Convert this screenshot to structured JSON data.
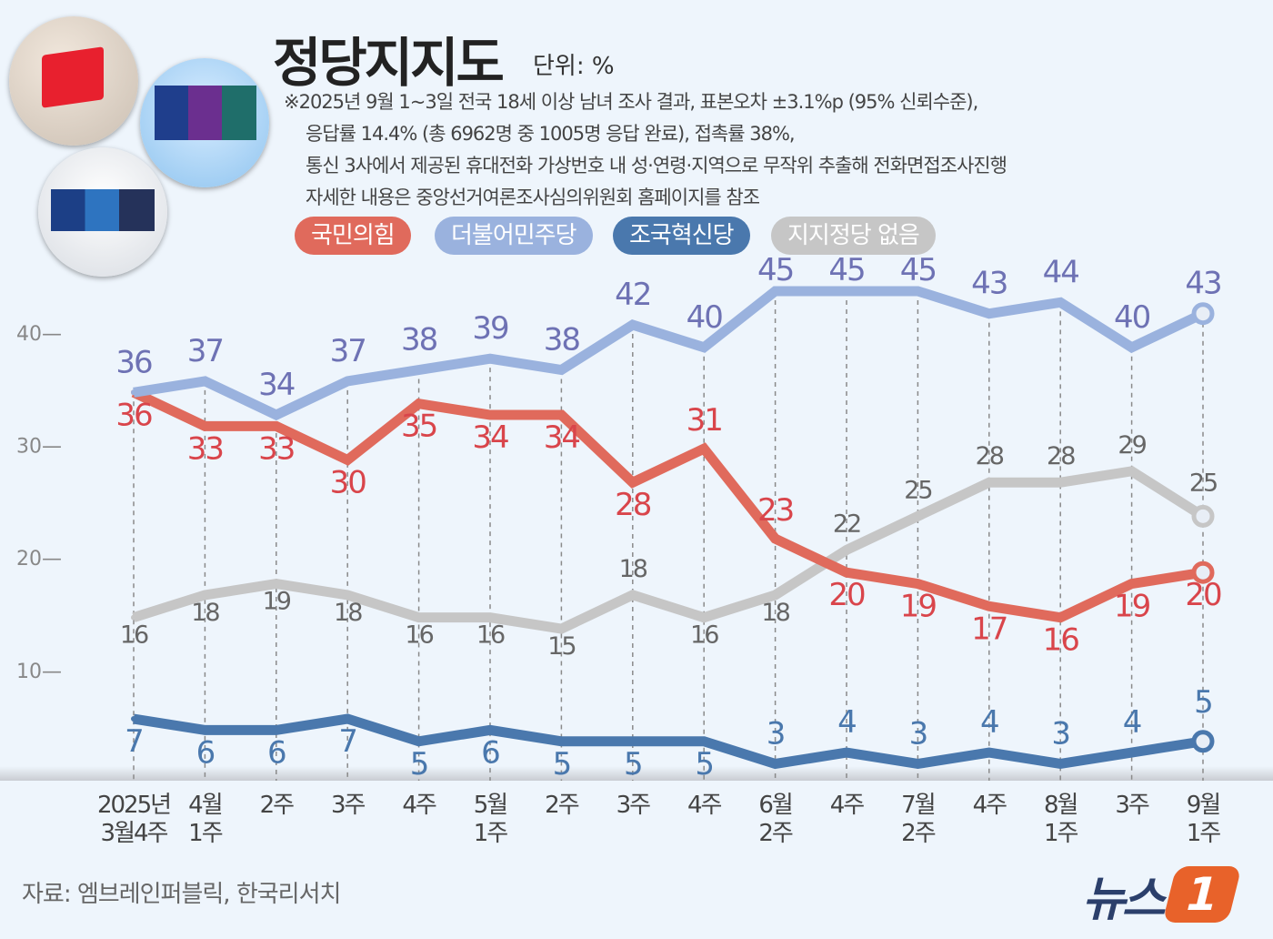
{
  "header": {
    "title": "정당지지도",
    "unit": "단위: %",
    "notes": [
      "※2025년 9월 1~3일 전국 18세 이상 남녀 조사 결과, 표본오차 ±3.1%p (95% 신뢰수준),",
      "응답률 14.4% (총 6962명 중 1005명 응답 완료), 접촉률 38%,",
      "통신 3사에서 제공된 휴대전화 가상번호 내 성·연령·지역으로 무작위 추출해 전화면접조사진행",
      "자세한 내용은 중앙선거여론조사심의위원회 홈페이지를 참조"
    ]
  },
  "footer": {
    "source": "자료: 엠브레인퍼블릭, 한국리서치",
    "logo": "뉴스1"
  },
  "chart_data": {
    "type": "line",
    "title": "정당지지도",
    "ylim": [
      0,
      45
    ],
    "yticks": [
      10,
      20,
      30,
      40
    ],
    "grid": "vertical dashed",
    "legend": "top",
    "categories": [
      [
        "2025년",
        "3월4주"
      ],
      [
        "4월",
        "1주"
      ],
      [
        "2주",
        ""
      ],
      [
        "3주",
        ""
      ],
      [
        "4주",
        ""
      ],
      [
        "5월",
        "1주"
      ],
      [
        "2주",
        ""
      ],
      [
        "3주",
        ""
      ],
      [
        "4주",
        ""
      ],
      [
        "6월",
        "2주"
      ],
      [
        "4주",
        ""
      ],
      [
        "7월",
        "2주"
      ],
      [
        "4주",
        ""
      ],
      [
        "8월",
        "1주"
      ],
      [
        "3주",
        ""
      ],
      [
        "9월",
        "1주"
      ]
    ],
    "series": [
      {
        "name": "국민의힘",
        "color": "#e06a5c",
        "label_color": "#d9454b",
        "values": [
          36,
          33,
          33,
          30,
          35,
          34,
          34,
          28,
          31,
          23,
          20,
          19,
          17,
          16,
          19,
          20
        ]
      },
      {
        "name": "더불어민주당",
        "color": "#9ab2de",
        "label_color": "#6e72b4",
        "values": [
          36,
          37,
          34,
          37,
          38,
          39,
          38,
          42,
          40,
          45,
          45,
          45,
          43,
          44,
          40,
          43
        ]
      },
      {
        "name": "조국혁신당",
        "color": "#4a78ad",
        "label_color": "#4a78ad",
        "values": [
          7,
          6,
          6,
          7,
          5,
          6,
          5,
          5,
          5,
          3,
          4,
          3,
          4,
          3,
          4,
          5
        ]
      },
      {
        "name": "지지정당 없음",
        "color": "#c6c6c6",
        "label_color": "#666666",
        "values": [
          16,
          18,
          19,
          18,
          16,
          16,
          15,
          18,
          16,
          18,
          22,
          25,
          28,
          28,
          29,
          25
        ]
      }
    ]
  }
}
